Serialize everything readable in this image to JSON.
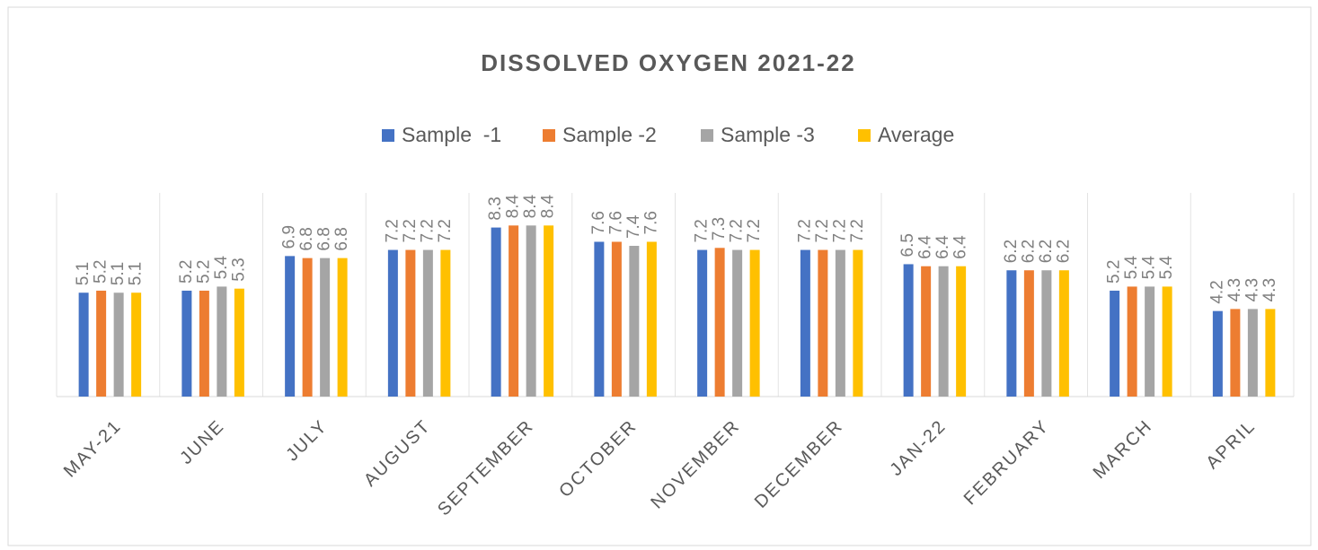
{
  "chart_data": {
    "type": "bar",
    "title": "DISSOLVED OXYGEN 2021-22",
    "categories": [
      "MAY-21",
      "JUNE",
      "JULY",
      "AUGUST",
      "SEPTEMBER",
      "OCTOBER",
      "NOVEMBER",
      "DECEMBER",
      "JAN-22",
      "FEBRUARY",
      "MARCH",
      "APRIL"
    ],
    "series": [
      {
        "name": "Sample  -1",
        "color": "#4472c4",
        "values": [
          5.1,
          5.2,
          6.9,
          7.2,
          8.3,
          7.6,
          7.2,
          7.2,
          6.5,
          6.2,
          5.2,
          4.2
        ]
      },
      {
        "name": "Sample -2",
        "color": "#ed7d31",
        "values": [
          5.2,
          5.2,
          6.8,
          7.2,
          8.4,
          7.6,
          7.3,
          7.2,
          6.4,
          6.2,
          5.4,
          4.3
        ]
      },
      {
        "name": "Sample -3",
        "color": "#a5a5a5",
        "values": [
          5.1,
          5.4,
          6.8,
          7.2,
          8.4,
          7.4,
          7.2,
          7.2,
          6.4,
          6.2,
          5.4,
          4.3
        ]
      },
      {
        "name": "Average",
        "color": "#ffc000",
        "values": [
          5.1,
          5.3,
          6.8,
          7.2,
          8.4,
          7.6,
          7.2,
          7.2,
          6.4,
          6.2,
          5.4,
          4.3
        ]
      }
    ],
    "ylim": [
      0,
      10
    ],
    "legend": "top"
  }
}
